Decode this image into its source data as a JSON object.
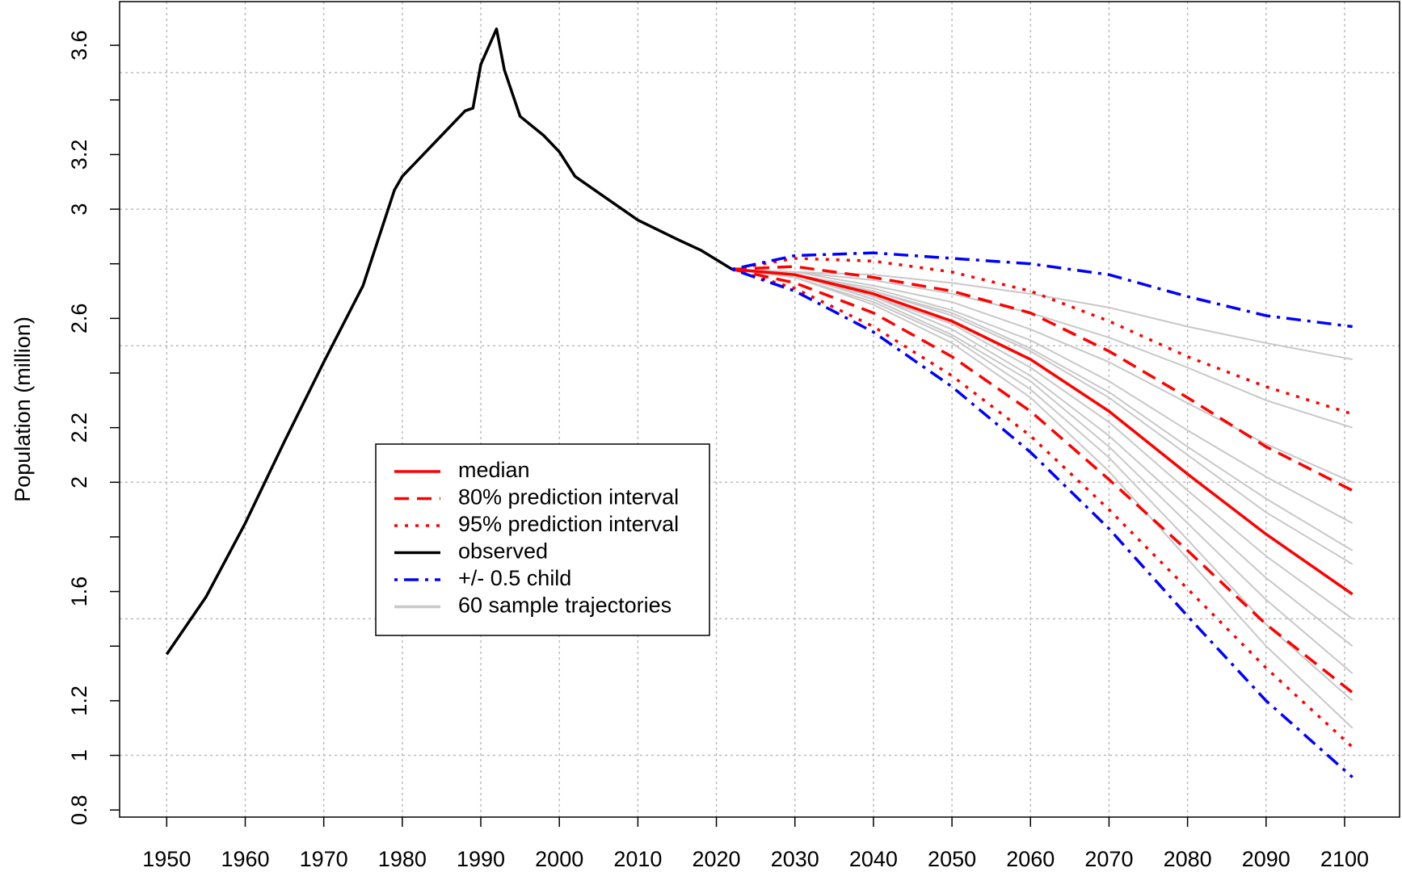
{
  "chart_data": {
    "type": "line",
    "ylabel": "Population (million)",
    "xlim": [
      1944,
      2107
    ],
    "ylim": [
      0.774,
      3.76
    ],
    "xticks": [
      1950,
      1960,
      1970,
      1980,
      1990,
      2000,
      2010,
      2020,
      2030,
      2040,
      2050,
      2060,
      2070,
      2080,
      2090,
      2100
    ],
    "yticks": [
      0.8,
      1,
      1.2,
      {
        "value": 1.4,
        "label": null
      },
      1.6,
      {
        "value": 1.8,
        "label": null
      },
      2,
      2.2,
      {
        "value": 2.4,
        "label": null
      },
      2.6,
      {
        "value": 2.8,
        "label": null
      },
      3,
      3.2,
      {
        "value": 3.4,
        "label": null
      },
      3.6
    ],
    "ygrid": [
      1,
      1.5,
      2,
      2.5,
      3,
      3.5
    ],
    "grid": true,
    "legend_position": "center-left",
    "trajectories": {
      "name": "60 sample trajectories",
      "color": "#c8c8c8",
      "x": [
        2022,
        2030,
        2040,
        2050,
        2060,
        2070,
        2080,
        2090,
        2101
      ],
      "samples": [
        [
          2.78,
          2.77,
          2.76,
          2.73,
          2.69,
          2.64,
          2.57,
          2.51,
          2.45
        ],
        [
          2.78,
          2.77,
          2.74,
          2.69,
          2.62,
          2.53,
          2.42,
          2.3,
          2.2
        ],
        [
          2.78,
          2.77,
          2.72,
          2.66,
          2.56,
          2.44,
          2.29,
          2.14,
          2.0
        ],
        [
          2.78,
          2.76,
          2.71,
          2.63,
          2.52,
          2.37,
          2.19,
          2.02,
          1.85
        ],
        [
          2.78,
          2.76,
          2.7,
          2.61,
          2.48,
          2.31,
          2.1,
          1.89,
          1.7
        ],
        [
          2.78,
          2.76,
          2.68,
          2.58,
          2.42,
          2.22,
          1.97,
          1.73,
          1.5
        ],
        [
          2.78,
          2.76,
          2.68,
          2.56,
          2.39,
          2.17,
          1.91,
          1.65,
          1.4
        ],
        [
          2.78,
          2.76,
          2.67,
          2.54,
          2.37,
          2.13,
          1.85,
          1.57,
          1.3
        ],
        [
          2.78,
          2.75,
          2.66,
          2.53,
          2.34,
          2.09,
          1.79,
          1.48,
          1.2
        ],
        [
          2.78,
          2.75,
          2.65,
          2.51,
          2.31,
          2.04,
          1.72,
          1.4,
          1.1
        ],
        [
          2.78,
          2.76,
          2.7,
          2.62,
          2.49,
          2.33,
          2.13,
          1.94,
          1.75
        ]
      ]
    },
    "series": [
      {
        "name": "median",
        "color": "#ff0000",
        "style": "solid",
        "x": [
          2022,
          2030,
          2040,
          2050,
          2060,
          2070,
          2080,
          2090,
          2101
        ],
        "values": [
          2.78,
          2.76,
          2.69,
          2.59,
          2.45,
          2.26,
          2.03,
          1.81,
          1.59
        ]
      },
      {
        "name": "80% prediction interval",
        "color": "#ff0000",
        "style": "dashed",
        "x": [
          2022,
          2030,
          2040,
          2050,
          2060,
          2070,
          2080,
          2090,
          2101
        ],
        "lower": [
          2.78,
          2.73,
          2.62,
          2.46,
          2.26,
          2.01,
          1.75,
          1.48,
          1.23
        ],
        "upper": [
          2.78,
          2.79,
          2.75,
          2.7,
          2.62,
          2.48,
          2.31,
          2.13,
          1.97
        ]
      },
      {
        "name": "95% prediction interval",
        "color": "#ff0000",
        "style": "dotted",
        "x": [
          2022,
          2030,
          2040,
          2050,
          2060,
          2070,
          2080,
          2090,
          2101
        ],
        "lower": [
          2.78,
          2.71,
          2.57,
          2.39,
          2.17,
          1.9,
          1.61,
          1.32,
          1.03
        ],
        "upper": [
          2.78,
          2.82,
          2.81,
          2.77,
          2.7,
          2.59,
          2.46,
          2.35,
          2.25
        ]
      },
      {
        "name": "observed",
        "color": "#000000",
        "style": "solid",
        "x": [
          1950,
          1955,
          1960,
          1965,
          1970,
          1975,
          1979,
          1980,
          1985,
          1988,
          1989,
          1990,
          1992,
          1993,
          1995,
          1998,
          2000,
          2002,
          2005,
          2010,
          2015,
          2018,
          2022
        ],
        "values": [
          1.37,
          1.58,
          1.85,
          2.15,
          2.44,
          2.72,
          3.07,
          3.12,
          3.27,
          3.36,
          3.37,
          3.53,
          3.66,
          3.51,
          3.34,
          3.27,
          3.21,
          3.12,
          3.06,
          2.96,
          2.89,
          2.85,
          2.78
        ]
      },
      {
        "name": "+/- 0.5 child",
        "color": "#0000ff",
        "style": "dotdash",
        "x": [
          2022,
          2030,
          2040,
          2050,
          2060,
          2070,
          2080,
          2090,
          2101
        ],
        "lower": [
          2.78,
          2.7,
          2.55,
          2.35,
          2.11,
          1.83,
          1.51,
          1.2,
          0.92
        ],
        "upper": [
          2.78,
          2.83,
          2.84,
          2.82,
          2.8,
          2.76,
          2.68,
          2.61,
          2.57
        ]
      }
    ]
  }
}
